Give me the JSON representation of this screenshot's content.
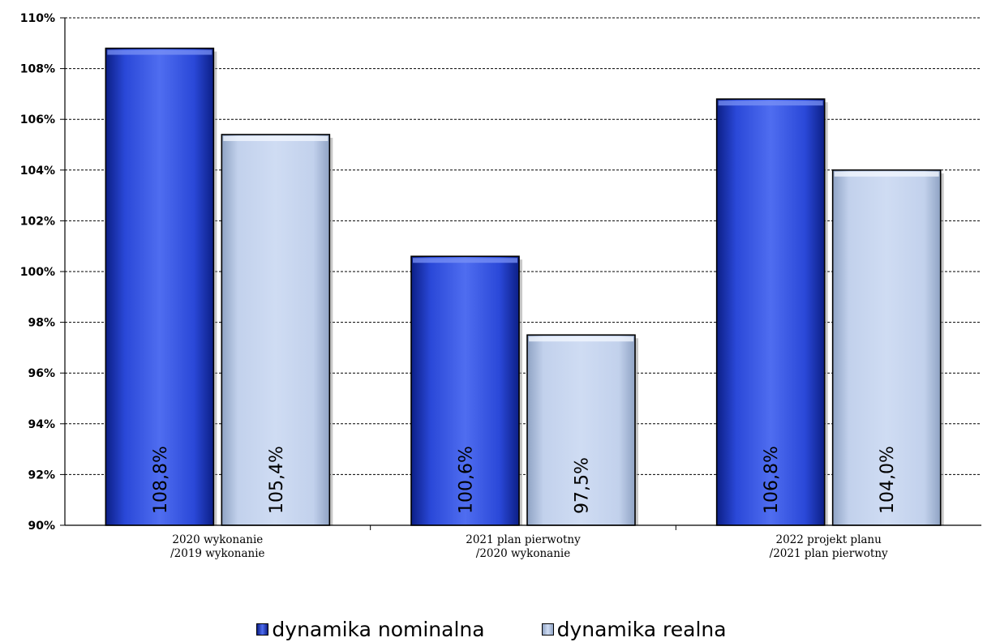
{
  "chart_data": {
    "type": "bar",
    "categories": [
      [
        "2020 wykonanie",
        "/2019 wykonanie"
      ],
      [
        "2021 plan pierwotny",
        "/2020 wykonanie"
      ],
      [
        "2022 projekt planu",
        "/2021 plan pierwotny"
      ]
    ],
    "series": [
      {
        "name": "dynamika nominalna",
        "values": [
          108.8,
          100.6,
          106.8
        ],
        "labels": [
          "108,8%",
          "100,6%",
          "106,8%"
        ],
        "color": "#2a3fc9"
      },
      {
        "name": "dynamika realna",
        "values": [
          105.4,
          97.5,
          104.0
        ],
        "labels": [
          "105,4%",
          "97,5%",
          "104,0%"
        ],
        "color": "#c6d5ef"
      }
    ],
    "ylim": [
      90,
      110
    ],
    "yticks": [
      "90%",
      "92%",
      "94%",
      "96%",
      "98%",
      "100%",
      "102%",
      "104%",
      "106%",
      "108%",
      "110%"
    ],
    "grid": true,
    "legend_position": "bottom"
  }
}
